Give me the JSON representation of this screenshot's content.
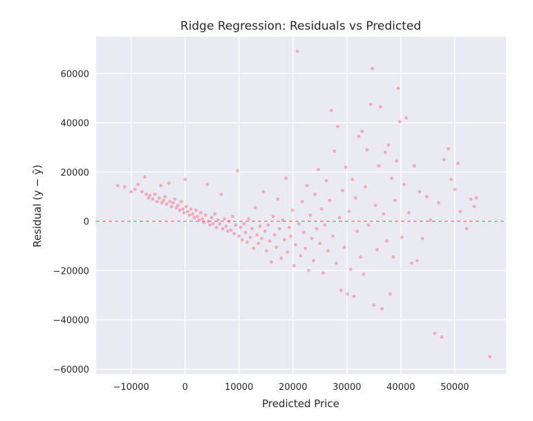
{
  "chart_data": {
    "type": "scatter",
    "title": "Ridge Regression: Residuals vs Predicted",
    "xlabel": "Predicted Price",
    "ylabel": "Residual (y − ŷ)",
    "xlim": [
      -16500,
      59500
    ],
    "ylim": [
      -62000,
      75000
    ],
    "xticks": [
      -10000,
      0,
      10000,
      20000,
      30000,
      40000,
      50000
    ],
    "xtick_labels": [
      "−10000",
      "0",
      "10000",
      "20000",
      "30000",
      "40000",
      "50000"
    ],
    "yticks": [
      -60000,
      -40000,
      -20000,
      0,
      20000,
      40000,
      60000
    ],
    "ytick_labels": [
      "−60000",
      "−40000",
      "−20000",
      "0",
      "20000",
      "40000",
      "60000"
    ],
    "grid": true,
    "reference_line": {
      "y": 0,
      "style": "dashed"
    },
    "colors": {
      "background": "#eaeaf2",
      "grid": "#ffffff",
      "points": "#f2617a",
      "reference_line": "#f2617a"
    },
    "points": [
      {
        "x": -12500,
        "y": 14500
      },
      {
        "x": -11200,
        "y": 14000
      },
      {
        "x": -10000,
        "y": 12000
      },
      {
        "x": -9300,
        "y": 13000
      },
      {
        "x": -8700,
        "y": 15000
      },
      {
        "x": -8000,
        "y": 12000
      },
      {
        "x": -7500,
        "y": 18000
      },
      {
        "x": -7200,
        "y": 11000
      },
      {
        "x": -6800,
        "y": 9500
      },
      {
        "x": -6500,
        "y": 10500
      },
      {
        "x": -6000,
        "y": 9000
      },
      {
        "x": -5600,
        "y": 11000
      },
      {
        "x": -5200,
        "y": 8000
      },
      {
        "x": -4800,
        "y": 9500
      },
      {
        "x": -4500,
        "y": 14500
      },
      {
        "x": -4300,
        "y": 7500
      },
      {
        "x": -4000,
        "y": 8500
      },
      {
        "x": -3700,
        "y": 10000
      },
      {
        "x": -3400,
        "y": 7000
      },
      {
        "x": -3000,
        "y": 15500
      },
      {
        "x": -2800,
        "y": 8000
      },
      {
        "x": -2500,
        "y": 6000
      },
      {
        "x": -2200,
        "y": 7500
      },
      {
        "x": -1900,
        "y": 9000
      },
      {
        "x": -1600,
        "y": 5500
      },
      {
        "x": -1300,
        "y": 6500
      },
      {
        "x": -1000,
        "y": 4500
      },
      {
        "x": -700,
        "y": 8000
      },
      {
        "x": -400,
        "y": 5000
      },
      {
        "x": -200,
        "y": 3500
      },
      {
        "x": 0,
        "y": 17000
      },
      {
        "x": 200,
        "y": 6000
      },
      {
        "x": 500,
        "y": 4000
      },
      {
        "x": 800,
        "y": 2500
      },
      {
        "x": 1100,
        "y": 5000
      },
      {
        "x": 1400,
        "y": 3000
      },
      {
        "x": 1700,
        "y": 1500
      },
      {
        "x": 2000,
        "y": 4500
      },
      {
        "x": 2300,
        "y": 2000
      },
      {
        "x": 2600,
        "y": 500
      },
      {
        "x": 2900,
        "y": 3500
      },
      {
        "x": 3200,
        "y": 1000
      },
      {
        "x": 3500,
        "y": -500
      },
      {
        "x": 3800,
        "y": 2500
      },
      {
        "x": 4100,
        "y": 15000
      },
      {
        "x": 4300,
        "y": 0
      },
      {
        "x": 4600,
        "y": -1500
      },
      {
        "x": 4900,
        "y": 1500
      },
      {
        "x": 5200,
        "y": -1000
      },
      {
        "x": 5500,
        "y": 3000
      },
      {
        "x": 5800,
        "y": -2500
      },
      {
        "x": 6100,
        "y": 500
      },
      {
        "x": 6400,
        "y": -1000
      },
      {
        "x": 6700,
        "y": 11000
      },
      {
        "x": 7000,
        "y": -3000
      },
      {
        "x": 7300,
        "y": 1000
      },
      {
        "x": 7600,
        "y": -2000
      },
      {
        "x": 7900,
        "y": -4000
      },
      {
        "x": 8200,
        "y": 0
      },
      {
        "x": 8500,
        "y": -3500
      },
      {
        "x": 8800,
        "y": 2000
      },
      {
        "x": 9100,
        "y": -5000
      },
      {
        "x": 9400,
        "y": -1500
      },
      {
        "x": 9700,
        "y": 20500
      },
      {
        "x": 10000,
        "y": -6000
      },
      {
        "x": 10300,
        "y": -2500
      },
      {
        "x": 10600,
        "y": -7500
      },
      {
        "x": 10900,
        "y": -1000
      },
      {
        "x": 11200,
        "y": -4500
      },
      {
        "x": 11500,
        "y": -8500
      },
      {
        "x": 11800,
        "y": 1000
      },
      {
        "x": 12100,
        "y": -6500
      },
      {
        "x": 12400,
        "y": -3000
      },
      {
        "x": 12700,
        "y": -11000
      },
      {
        "x": 13000,
        "y": 5500
      },
      {
        "x": 13300,
        "y": -5500
      },
      {
        "x": 13600,
        "y": -9000
      },
      {
        "x": 13900,
        "y": -2000
      },
      {
        "x": 14200,
        "y": -7000
      },
      {
        "x": 14500,
        "y": 12000
      },
      {
        "x": 14800,
        "y": -4000
      },
      {
        "x": 15100,
        "y": -12000
      },
      {
        "x": 15400,
        "y": -1500
      },
      {
        "x": 15700,
        "y": -8000
      },
      {
        "x": 16000,
        "y": -16500
      },
      {
        "x": 16300,
        "y": 2000
      },
      {
        "x": 16600,
        "y": -5500
      },
      {
        "x": 16900,
        "y": -10500
      },
      {
        "x": 17200,
        "y": 9000
      },
      {
        "x": 17500,
        "y": -3000
      },
      {
        "x": 17800,
        "y": -15000
      },
      {
        "x": 18100,
        "y": 500
      },
      {
        "x": 18400,
        "y": -7500
      },
      {
        "x": 18700,
        "y": 17500
      },
      {
        "x": 19000,
        "y": -12500
      },
      {
        "x": 19300,
        "y": -2500
      },
      {
        "x": 19600,
        "y": -6000
      },
      {
        "x": 19900,
        "y": 4500
      },
      {
        "x": 20200,
        "y": -18000
      },
      {
        "x": 20500,
        "y": -9500
      },
      {
        "x": 20800,
        "y": 69000
      },
      {
        "x": 21100,
        "y": -1000
      },
      {
        "x": 21400,
        "y": -14000
      },
      {
        "x": 21700,
        "y": 8000
      },
      {
        "x": 22000,
        "y": -4500
      },
      {
        "x": 22300,
        "y": -11000
      },
      {
        "x": 22600,
        "y": 14500
      },
      {
        "x": 22900,
        "y": -20000
      },
      {
        "x": 23200,
        "y": 2500
      },
      {
        "x": 23500,
        "y": -7000
      },
      {
        "x": 23800,
        "y": -16000
      },
      {
        "x": 24100,
        "y": 11000
      },
      {
        "x": 24400,
        "y": -3000
      },
      {
        "x": 24700,
        "y": 21000
      },
      {
        "x": 25000,
        "y": -9000
      },
      {
        "x": 25300,
        "y": 5000
      },
      {
        "x": 25600,
        "y": -21000
      },
      {
        "x": 25900,
        "y": -1500
      },
      {
        "x": 26200,
        "y": 16500
      },
      {
        "x": 26500,
        "y": -12000
      },
      {
        "x": 26800,
        "y": 8500
      },
      {
        "x": 27100,
        "y": 45000
      },
      {
        "x": 27400,
        "y": -6000
      },
      {
        "x": 27700,
        "y": 28500
      },
      {
        "x": 28000,
        "y": -17000
      },
      {
        "x": 28300,
        "y": 38500
      },
      {
        "x": 28600,
        "y": 1500
      },
      {
        "x": 28900,
        "y": -28000
      },
      {
        "x": 29200,
        "y": 12500
      },
      {
        "x": 29500,
        "y": -10500
      },
      {
        "x": 29800,
        "y": 22000
      },
      {
        "x": 30100,
        "y": -29500
      },
      {
        "x": 30400,
        "y": 4000
      },
      {
        "x": 30700,
        "y": -19500
      },
      {
        "x": 31000,
        "y": 17000
      },
      {
        "x": 31300,
        "y": -30500
      },
      {
        "x": 31600,
        "y": 9500
      },
      {
        "x": 31900,
        "y": -4000
      },
      {
        "x": 32200,
        "y": 34500
      },
      {
        "x": 32500,
        "y": -14500
      },
      {
        "x": 32800,
        "y": 36500
      },
      {
        "x": 33100,
        "y": -21500
      },
      {
        "x": 33400,
        "y": 14000
      },
      {
        "x": 33700,
        "y": 29000
      },
      {
        "x": 34000,
        "y": -1500
      },
      {
        "x": 34400,
        "y": 47500
      },
      {
        "x": 34700,
        "y": 62000
      },
      {
        "x": 35000,
        "y": -34000
      },
      {
        "x": 35300,
        "y": 6500
      },
      {
        "x": 35600,
        "y": -11500
      },
      {
        "x": 35900,
        "y": 22500
      },
      {
        "x": 36200,
        "y": 46500
      },
      {
        "x": 36500,
        "y": -35500
      },
      {
        "x": 36800,
        "y": 3000
      },
      {
        "x": 37100,
        "y": 28000
      },
      {
        "x": 37400,
        "y": -8000
      },
      {
        "x": 37700,
        "y": 31000
      },
      {
        "x": 38000,
        "y": -29500
      },
      {
        "x": 38300,
        "y": 17500
      },
      {
        "x": 38600,
        "y": -14500
      },
      {
        "x": 38900,
        "y": 8500
      },
      {
        "x": 39200,
        "y": 24500
      },
      {
        "x": 39500,
        "y": 54000
      },
      {
        "x": 39800,
        "y": 40500
      },
      {
        "x": 40200,
        "y": -6500
      },
      {
        "x": 40600,
        "y": 15000
      },
      {
        "x": 41000,
        "y": 42000
      },
      {
        "x": 41500,
        "y": 3500
      },
      {
        "x": 42000,
        "y": -17000
      },
      {
        "x": 42500,
        "y": 22500
      },
      {
        "x": 43000,
        "y": -16000
      },
      {
        "x": 43500,
        "y": 12000
      },
      {
        "x": 44000,
        "y": -7000
      },
      {
        "x": 44800,
        "y": 10000
      },
      {
        "x": 45500,
        "y": 500
      },
      {
        "x": 46300,
        "y": -45500
      },
      {
        "x": 47000,
        "y": 7500
      },
      {
        "x": 47600,
        "y": -47000
      },
      {
        "x": 48000,
        "y": 25000
      },
      {
        "x": 48800,
        "y": 29500
      },
      {
        "x": 49300,
        "y": 17000
      },
      {
        "x": 50000,
        "y": 13000
      },
      {
        "x": 50600,
        "y": 23500
      },
      {
        "x": 51000,
        "y": 4000
      },
      {
        "x": 52200,
        "y": -3000
      },
      {
        "x": 53000,
        "y": 9000
      },
      {
        "x": 53600,
        "y": 6000
      },
      {
        "x": 54000,
        "y": 9500
      },
      {
        "x": 56500,
        "y": -55000
      }
    ]
  }
}
